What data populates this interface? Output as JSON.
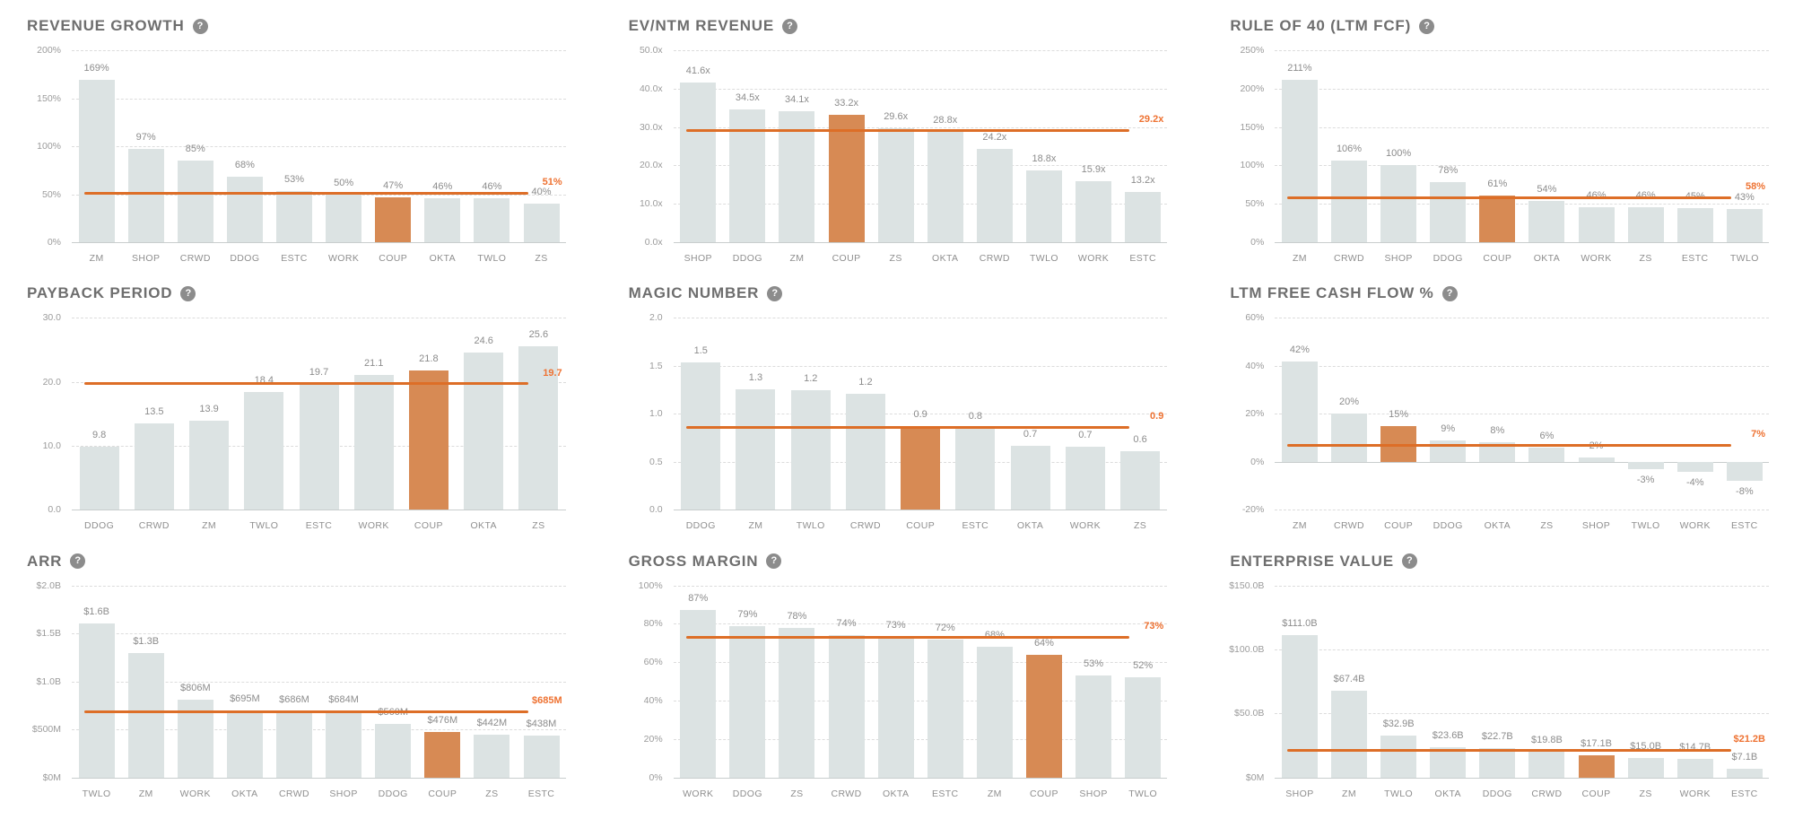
{
  "page": {
    "background": "#ffffff"
  },
  "highlight_ticker": "COUP",
  "icons": {
    "help_glyph": "?"
  },
  "colors": {
    "bar": "#dce3e3",
    "highlight_bar": "#d78a54",
    "median_line": "#dd6e27",
    "median_label": "#ee7232",
    "title": "#6e6e6e",
    "axis_label": "#9b9b9b",
    "value_label": "#8c8c8c",
    "gridline": "#dcdcdc",
    "baseline": "#c8cdcd",
    "help_icon_bg": "#8c8c8c"
  },
  "chart_data": [
    {
      "type": "bar",
      "title": "REVENUE GROWTH",
      "y_min": 0,
      "y_max": 200,
      "y_ticks": [
        {
          "value": 0,
          "label": "0%"
        },
        {
          "value": 50,
          "label": "50%"
        },
        {
          "value": 100,
          "label": "100%"
        },
        {
          "value": 150,
          "label": "150%"
        },
        {
          "value": 200,
          "label": "200%"
        }
      ],
      "bars": [
        {
          "category": "ZM",
          "value": 169,
          "value_label": "169%",
          "highlight": false
        },
        {
          "category": "SHOP",
          "value": 97,
          "value_label": "97%",
          "highlight": false
        },
        {
          "category": "CRWD",
          "value": 85,
          "value_label": "85%",
          "highlight": false
        },
        {
          "category": "DDOG",
          "value": 68,
          "value_label": "68%",
          "highlight": false
        },
        {
          "category": "ESTC",
          "value": 53,
          "value_label": "53%",
          "highlight": false
        },
        {
          "category": "WORK",
          "value": 50,
          "value_label": "50%",
          "highlight": false
        },
        {
          "category": "COUP",
          "value": 47,
          "value_label": "47%",
          "highlight": true
        },
        {
          "category": "OKTA",
          "value": 46,
          "value_label": "46%",
          "highlight": false
        },
        {
          "category": "TWLO",
          "value": 46,
          "value_label": "46%",
          "highlight": false
        },
        {
          "category": "ZS",
          "value": 40,
          "value_label": "40%",
          "highlight": false
        }
      ],
      "median": {
        "value": 51,
        "label": "51%"
      }
    },
    {
      "type": "bar",
      "title": "EV/NTM REVENUE",
      "y_min": 0,
      "y_max": 50,
      "y_ticks": [
        {
          "value": 0,
          "label": "0.0x"
        },
        {
          "value": 10,
          "label": "10.0x"
        },
        {
          "value": 20,
          "label": "20.0x"
        },
        {
          "value": 30,
          "label": "30.0x"
        },
        {
          "value": 40,
          "label": "40.0x"
        },
        {
          "value": 50,
          "label": "50.0x"
        }
      ],
      "bars": [
        {
          "category": "SHOP",
          "value": 41.6,
          "value_label": "41.6x",
          "highlight": false
        },
        {
          "category": "DDOG",
          "value": 34.5,
          "value_label": "34.5x",
          "highlight": false
        },
        {
          "category": "ZM",
          "value": 34.1,
          "value_label": "34.1x",
          "highlight": false
        },
        {
          "category": "COUP",
          "value": 33.2,
          "value_label": "33.2x",
          "highlight": true
        },
        {
          "category": "ZS",
          "value": 29.6,
          "value_label": "29.6x",
          "highlight": false
        },
        {
          "category": "OKTA",
          "value": 28.8,
          "value_label": "28.8x",
          "highlight": false
        },
        {
          "category": "CRWD",
          "value": 24.2,
          "value_label": "24.2x",
          "highlight": false
        },
        {
          "category": "TWLO",
          "value": 18.8,
          "value_label": "18.8x",
          "highlight": false
        },
        {
          "category": "WORK",
          "value": 15.9,
          "value_label": "15.9x",
          "highlight": false
        },
        {
          "category": "ESTC",
          "value": 13.2,
          "value_label": "13.2x",
          "highlight": false
        }
      ],
      "median": {
        "value": 29.2,
        "label": "29.2x"
      }
    },
    {
      "type": "bar",
      "title": "RULE OF 40 (LTM FCF)",
      "y_min": 0,
      "y_max": 250,
      "y_ticks": [
        {
          "value": 0,
          "label": "0%"
        },
        {
          "value": 50,
          "label": "50%"
        },
        {
          "value": 100,
          "label": "100%"
        },
        {
          "value": 150,
          "label": "150%"
        },
        {
          "value": 200,
          "label": "200%"
        },
        {
          "value": 250,
          "label": "250%"
        }
      ],
      "bars": [
        {
          "category": "ZM",
          "value": 211,
          "value_label": "211%",
          "highlight": false
        },
        {
          "category": "CRWD",
          "value": 106,
          "value_label": "106%",
          "highlight": false
        },
        {
          "category": "SHOP",
          "value": 100,
          "value_label": "100%",
          "highlight": false
        },
        {
          "category": "DDOG",
          "value": 78,
          "value_label": "78%",
          "highlight": false
        },
        {
          "category": "COUP",
          "value": 61,
          "value_label": "61%",
          "highlight": true
        },
        {
          "category": "OKTA",
          "value": 54,
          "value_label": "54%",
          "highlight": false
        },
        {
          "category": "WORK",
          "value": 46,
          "value_label": "46%",
          "highlight": false
        },
        {
          "category": "ZS",
          "value": 46,
          "value_label": "46%",
          "highlight": false
        },
        {
          "category": "ESTC",
          "value": 45,
          "value_label": "45%",
          "highlight": false
        },
        {
          "category": "TWLO",
          "value": 43,
          "value_label": "43%",
          "highlight": false
        }
      ],
      "median": {
        "value": 58,
        "label": "58%"
      }
    },
    {
      "type": "bar",
      "title": "PAYBACK PERIOD",
      "y_min": 0,
      "y_max": 30,
      "y_ticks": [
        {
          "value": 0,
          "label": "0.0"
        },
        {
          "value": 10,
          "label": "10.0"
        },
        {
          "value": 20,
          "label": "20.0"
        },
        {
          "value": 30,
          "label": "30.0"
        }
      ],
      "bars": [
        {
          "category": "DDOG",
          "value": 9.8,
          "value_label": "9.8",
          "highlight": false
        },
        {
          "category": "CRWD",
          "value": 13.5,
          "value_label": "13.5",
          "highlight": false
        },
        {
          "category": "ZM",
          "value": 13.9,
          "value_label": "13.9",
          "highlight": false
        },
        {
          "category": "TWLO",
          "value": 18.4,
          "value_label": "18.4",
          "highlight": false
        },
        {
          "category": "ESTC",
          "value": 19.7,
          "value_label": "19.7",
          "highlight": false
        },
        {
          "category": "WORK",
          "value": 21.1,
          "value_label": "21.1",
          "highlight": false
        },
        {
          "category": "COUP",
          "value": 21.8,
          "value_label": "21.8",
          "highlight": true
        },
        {
          "category": "OKTA",
          "value": 24.6,
          "value_label": "24.6",
          "highlight": false
        },
        {
          "category": "ZS",
          "value": 25.6,
          "value_label": "25.6",
          "highlight": false
        }
      ],
      "median": {
        "value": 19.7,
        "label": "19.7"
      }
    },
    {
      "type": "bar",
      "title": "MAGIC NUMBER",
      "y_min": 0,
      "y_max": 2,
      "y_ticks": [
        {
          "value": 0,
          "label": "0.0"
        },
        {
          "value": 0.5,
          "label": "0.5"
        },
        {
          "value": 1,
          "label": "1.0"
        },
        {
          "value": 1.5,
          "label": "1.5"
        },
        {
          "value": 2,
          "label": "2.0"
        }
      ],
      "bars": [
        {
          "category": "DDOG",
          "value": 1.54,
          "value_label": "1.5",
          "highlight": false
        },
        {
          "category": "ZM",
          "value": 1.26,
          "value_label": "1.3",
          "highlight": false
        },
        {
          "category": "TWLO",
          "value": 1.25,
          "value_label": "1.2",
          "highlight": false
        },
        {
          "category": "CRWD",
          "value": 1.21,
          "value_label": "1.2",
          "highlight": false
        },
        {
          "category": "COUP",
          "value": 0.87,
          "value_label": "0.9",
          "highlight": true
        },
        {
          "category": "ESTC",
          "value": 0.85,
          "value_label": "0.8",
          "highlight": false
        },
        {
          "category": "OKTA",
          "value": 0.67,
          "value_label": "0.7",
          "highlight": false
        },
        {
          "category": "WORK",
          "value": 0.66,
          "value_label": "0.7",
          "highlight": false
        },
        {
          "category": "ZS",
          "value": 0.61,
          "value_label": "0.6",
          "highlight": false
        }
      ],
      "median": {
        "value": 0.86,
        "label": "0.9"
      }
    },
    {
      "type": "bar",
      "title": "LTM FREE CASH FLOW %",
      "y_min": -20,
      "y_max": 60,
      "y_ticks": [
        {
          "value": -20,
          "label": "-20%"
        },
        {
          "value": 0,
          "label": "0%"
        },
        {
          "value": 20,
          "label": "20%"
        },
        {
          "value": 40,
          "label": "40%"
        },
        {
          "value": 60,
          "label": "60%"
        }
      ],
      "bars": [
        {
          "category": "ZM",
          "value": 42,
          "value_label": "42%",
          "highlight": false
        },
        {
          "category": "CRWD",
          "value": 20,
          "value_label": "20%",
          "highlight": false
        },
        {
          "category": "COUP",
          "value": 15,
          "value_label": "15%",
          "highlight": true
        },
        {
          "category": "DDOG",
          "value": 9,
          "value_label": "9%",
          "highlight": false
        },
        {
          "category": "OKTA",
          "value": 8,
          "value_label": "8%",
          "highlight": false
        },
        {
          "category": "ZS",
          "value": 6,
          "value_label": "6%",
          "highlight": false
        },
        {
          "category": "SHOP",
          "value": 2,
          "value_label": "2%",
          "highlight": false
        },
        {
          "category": "TWLO",
          "value": -3,
          "value_label": "-3%",
          "highlight": false
        },
        {
          "category": "WORK",
          "value": -4,
          "value_label": "-4%",
          "highlight": false
        },
        {
          "category": "ESTC",
          "value": -8,
          "value_label": "-8%",
          "highlight": false
        }
      ],
      "median": {
        "value": 7,
        "label": "7%"
      }
    },
    {
      "type": "bar",
      "title": "ARR",
      "y_min": 0,
      "y_max": 2000,
      "y_ticks": [
        {
          "value": 0,
          "label": "$0M"
        },
        {
          "value": 500,
          "label": "$500M"
        },
        {
          "value": 1000,
          "label": "$1.0B"
        },
        {
          "value": 1500,
          "label": "$1.5B"
        },
        {
          "value": 2000,
          "label": "$2.0B"
        }
      ],
      "bars": [
        {
          "category": "TWLO",
          "value": 1600,
          "value_label": "$1.6B",
          "highlight": false
        },
        {
          "category": "ZM",
          "value": 1300,
          "value_label": "$1.3B",
          "highlight": false
        },
        {
          "category": "WORK",
          "value": 806,
          "value_label": "$806M",
          "highlight": false
        },
        {
          "category": "OKTA",
          "value": 695,
          "value_label": "$695M",
          "highlight": false
        },
        {
          "category": "CRWD",
          "value": 686,
          "value_label": "$686M",
          "highlight": false
        },
        {
          "category": "SHOP",
          "value": 684,
          "value_label": "$684M",
          "highlight": false
        },
        {
          "category": "DDOG",
          "value": 560,
          "value_label": "$560M",
          "highlight": false
        },
        {
          "category": "COUP",
          "value": 476,
          "value_label": "$476M",
          "highlight": true
        },
        {
          "category": "ZS",
          "value": 442,
          "value_label": "$442M",
          "highlight": false
        },
        {
          "category": "ESTC",
          "value": 438,
          "value_label": "$438M",
          "highlight": false
        }
      ],
      "median": {
        "value": 685,
        "label": "$685M"
      }
    },
    {
      "type": "bar",
      "title": "GROSS MARGIN",
      "y_min": 0,
      "y_max": 100,
      "y_ticks": [
        {
          "value": 0,
          "label": "0%"
        },
        {
          "value": 20,
          "label": "20%"
        },
        {
          "value": 40,
          "label": "40%"
        },
        {
          "value": 60,
          "label": "60%"
        },
        {
          "value": 80,
          "label": "80%"
        },
        {
          "value": 100,
          "label": "100%"
        }
      ],
      "bars": [
        {
          "category": "WORK",
          "value": 87,
          "value_label": "87%",
          "highlight": false
        },
        {
          "category": "DDOG",
          "value": 79,
          "value_label": "79%",
          "highlight": false
        },
        {
          "category": "ZS",
          "value": 78,
          "value_label": "78%",
          "highlight": false
        },
        {
          "category": "CRWD",
          "value": 74,
          "value_label": "74%",
          "highlight": false
        },
        {
          "category": "OKTA",
          "value": 73,
          "value_label": "73%",
          "highlight": false
        },
        {
          "category": "ESTC",
          "value": 72,
          "value_label": "72%",
          "highlight": false
        },
        {
          "category": "ZM",
          "value": 68,
          "value_label": "68%",
          "highlight": false
        },
        {
          "category": "COUP",
          "value": 64,
          "value_label": "64%",
          "highlight": true
        },
        {
          "category": "SHOP",
          "value": 53,
          "value_label": "53%",
          "highlight": false
        },
        {
          "category": "TWLO",
          "value": 52,
          "value_label": "52%",
          "highlight": false
        }
      ],
      "median": {
        "value": 73,
        "label": "73%"
      }
    },
    {
      "type": "bar",
      "title": "ENTERPRISE VALUE",
      "y_min": 0,
      "y_max": 150,
      "y_ticks": [
        {
          "value": 0,
          "label": "$0M"
        },
        {
          "value": 50,
          "label": "$50.0B"
        },
        {
          "value": 100,
          "label": "$100.0B"
        },
        {
          "value": 150,
          "label": "$150.0B"
        }
      ],
      "bars": [
        {
          "category": "SHOP",
          "value": 111.0,
          "value_label": "$111.0B",
          "highlight": false
        },
        {
          "category": "ZM",
          "value": 67.4,
          "value_label": "$67.4B",
          "highlight": false
        },
        {
          "category": "TWLO",
          "value": 32.9,
          "value_label": "$32.9B",
          "highlight": false
        },
        {
          "category": "OKTA",
          "value": 23.6,
          "value_label": "$23.6B",
          "highlight": false
        },
        {
          "category": "DDOG",
          "value": 22.7,
          "value_label": "$22.7B",
          "highlight": false
        },
        {
          "category": "CRWD",
          "value": 19.8,
          "value_label": "$19.8B",
          "highlight": false
        },
        {
          "category": "COUP",
          "value": 17.1,
          "value_label": "$17.1B",
          "highlight": true
        },
        {
          "category": "ZS",
          "value": 15.0,
          "value_label": "$15.0B",
          "highlight": false
        },
        {
          "category": "WORK",
          "value": 14.7,
          "value_label": "$14.7B",
          "highlight": false
        },
        {
          "category": "ESTC",
          "value": 7.1,
          "value_label": "$7.1B",
          "highlight": false
        }
      ],
      "median": {
        "value": 21.2,
        "label": "$21.2B"
      }
    }
  ]
}
